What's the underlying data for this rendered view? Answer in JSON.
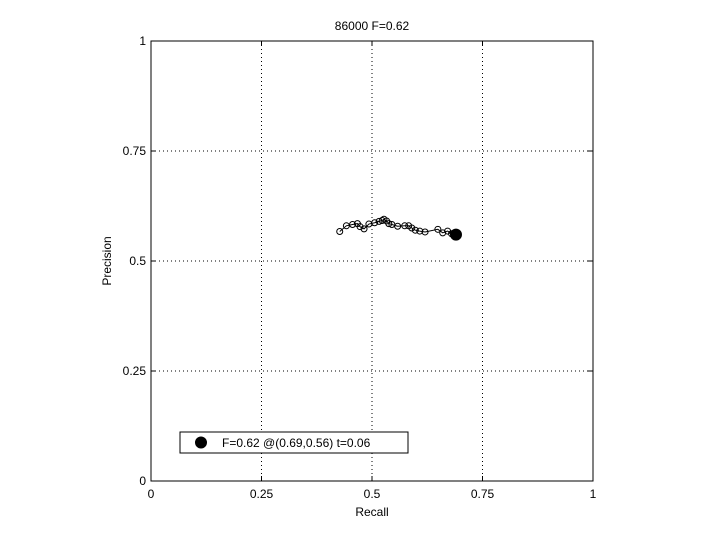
{
  "chart_data": {
    "type": "line",
    "title": "86000 F=0.62",
    "xlabel": "Recall",
    "ylabel": "Precision",
    "xlim": [
      0,
      1
    ],
    "ylim": [
      0,
      1
    ],
    "xticks": [
      "0",
      "0.25",
      "0.5",
      "0.75",
      "1"
    ],
    "yticks": [
      "0",
      "0.25",
      "0.5",
      "0.75",
      "1"
    ],
    "grid": true,
    "legend_position": "bottom-left",
    "series": [
      {
        "marker": "open-circle",
        "color": "#000000",
        "points": [
          [
            0.427,
            0.567
          ],
          [
            0.442,
            0.58
          ],
          [
            0.456,
            0.583
          ],
          [
            0.467,
            0.585
          ],
          [
            0.473,
            0.578
          ],
          [
            0.482,
            0.573
          ],
          [
            0.493,
            0.584
          ],
          [
            0.506,
            0.587
          ],
          [
            0.516,
            0.59
          ],
          [
            0.523,
            0.592
          ],
          [
            0.527,
            0.595
          ],
          [
            0.533,
            0.591
          ],
          [
            0.538,
            0.585
          ],
          [
            0.545,
            0.583
          ],
          [
            0.558,
            0.579
          ],
          [
            0.574,
            0.58
          ],
          [
            0.583,
            0.58
          ],
          [
            0.59,
            0.575
          ],
          [
            0.598,
            0.57
          ],
          [
            0.608,
            0.568
          ],
          [
            0.62,
            0.566
          ],
          [
            0.649,
            0.572
          ],
          [
            0.66,
            0.564
          ],
          [
            0.671,
            0.568
          ],
          [
            0.68,
            0.562
          ]
        ]
      }
    ],
    "best_point": {
      "recall": 0.69,
      "precision": 0.56,
      "marker": "filled-circle"
    },
    "legend": [
      "F=0.62 @(0.69,0.56) t=0.06"
    ]
  }
}
